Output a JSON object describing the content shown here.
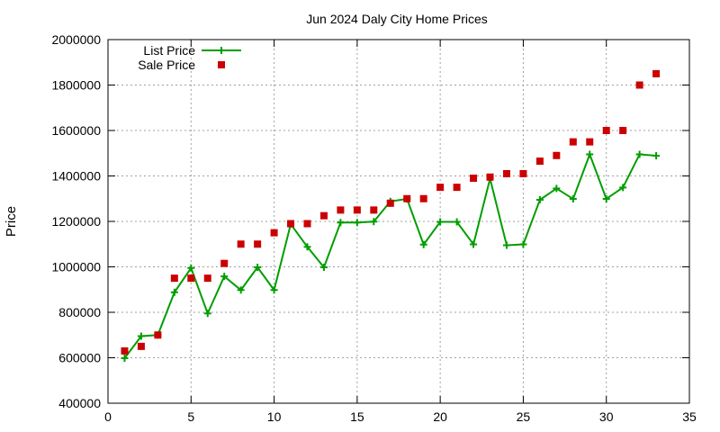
{
  "chart_data": {
    "type": "line",
    "title": "Jun 2024 Daly City Home Prices",
    "xlabel": "",
    "ylabel": "Price",
    "xlim": [
      0,
      35
    ],
    "ylim": [
      400000,
      2000000
    ],
    "xticks": [
      0,
      5,
      10,
      15,
      20,
      25,
      30,
      35
    ],
    "yticks": [
      400000,
      600000,
      800000,
      1000000,
      1200000,
      1400000,
      1600000,
      1800000,
      2000000
    ],
    "grid": true,
    "legend_position": "top-left",
    "series": [
      {
        "name": "List Price",
        "style": "line-with-plus-markers",
        "color": "#009e00",
        "x": [
          1,
          2,
          3,
          4,
          5,
          6,
          7,
          8,
          9,
          10,
          11,
          12,
          13,
          14,
          15,
          16,
          17,
          18,
          19,
          20,
          21,
          22,
          23,
          24,
          25,
          26,
          27,
          28,
          29,
          30,
          31,
          32,
          33
        ],
        "y": [
          598000,
          695000,
          700000,
          888000,
          995000,
          795000,
          958000,
          898000,
          998000,
          898000,
          1188000,
          1088000,
          998000,
          1195000,
          1195000,
          1199000,
          1288000,
          1299000,
          1098000,
          1198000,
          1198000,
          1099000,
          1388000,
          1095000,
          1099000,
          1295000,
          1345000,
          1299000,
          1495000,
          1299000,
          1349000,
          1495000,
          1489000
        ]
      },
      {
        "name": "Sale Price",
        "style": "square-markers",
        "color": "#cc0000",
        "x": [
          1,
          2,
          3,
          4,
          5,
          6,
          7,
          8,
          9,
          10,
          11,
          12,
          13,
          14,
          15,
          16,
          17,
          18,
          19,
          20,
          21,
          22,
          23,
          24,
          25,
          26,
          27,
          28,
          29,
          30,
          31,
          32,
          33
        ],
        "y": [
          630000,
          650000,
          700000,
          950000,
          950000,
          950000,
          1015000,
          1100000,
          1100000,
          1150000,
          1190000,
          1190000,
          1225000,
          1250000,
          1250000,
          1250000,
          1280000,
          1300000,
          1300000,
          1350000,
          1350000,
          1390000,
          1395000,
          1410000,
          1410000,
          1465000,
          1490000,
          1550000,
          1550000,
          1600000,
          1600000,
          1800000,
          1850000
        ]
      }
    ]
  }
}
